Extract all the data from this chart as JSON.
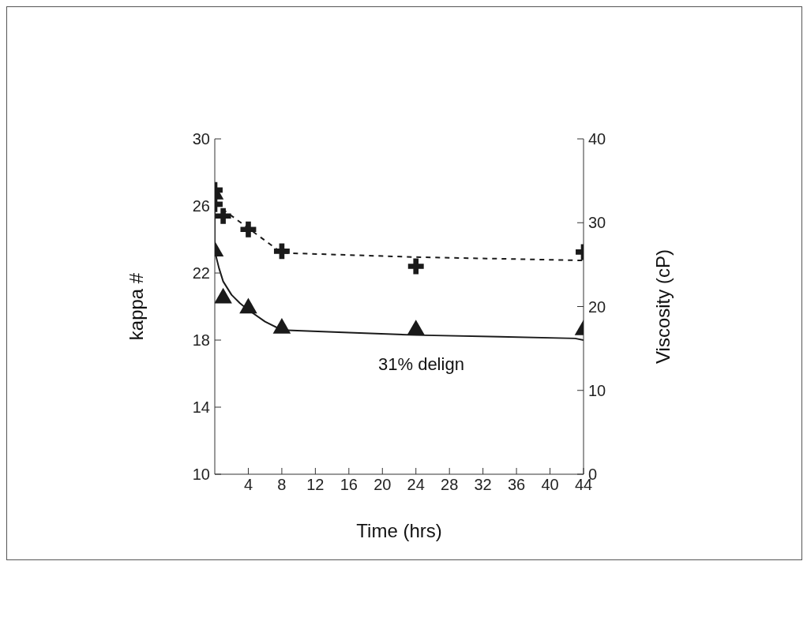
{
  "chart_data": {
    "type": "scatter",
    "xlabel": "Time (hrs)",
    "ylabel": "kappa #",
    "y2label": "Viscosity (cP)",
    "xlim": [
      0,
      44
    ],
    "xticks": [
      4,
      8,
      12,
      16,
      20,
      24,
      28,
      32,
      36,
      40,
      44
    ],
    "ylim": [
      10,
      30
    ],
    "yticks": [
      10,
      14,
      18,
      22,
      26,
      30
    ],
    "y2lim": [
      0,
      40
    ],
    "y2ticks": [
      0,
      10,
      20,
      30,
      40
    ],
    "grid": false,
    "legend": false,
    "annotations": [
      "31% delign"
    ],
    "series": [
      {
        "color": "#1a1a1a",
        "marker": "triangle",
        "x": [
          0,
          0,
          1,
          4,
          8,
          24,
          44
        ],
        "values": [
          26.7,
          23.3,
          20.5,
          19.9,
          18.7,
          18.6,
          18.6
        ]
      },
      {
        "color": "#1a1a1a",
        "marker": "cross",
        "axis": "y2",
        "x": [
          0,
          0,
          1,
          4,
          8,
          24,
          44
        ],
        "values": [
          33.9,
          32.2,
          30.8,
          29.2,
          26.6,
          24.8,
          26.5
        ]
      },
      {
        "type": "line",
        "color": "#1a1a1a",
        "marker": "none",
        "line_style": "solid",
        "x": [
          0,
          0,
          0.5,
          1,
          2,
          3,
          4,
          6,
          8,
          16,
          24,
          34,
          43,
          44
        ],
        "values": [
          26.7,
          23.3,
          22.3,
          21.5,
          20.7,
          20.2,
          19.8,
          19.1,
          18.6,
          18.45,
          18.3,
          18.2,
          18.1,
          18.0
        ]
      },
      {
        "type": "line",
        "color": "#1a1a1a",
        "marker": "none",
        "line_style": "dashed",
        "axis": "y2",
        "x": [
          0,
          8,
          24,
          44
        ],
        "values": [
          32.3,
          26.4,
          25.9,
          25.5
        ]
      }
    ]
  }
}
